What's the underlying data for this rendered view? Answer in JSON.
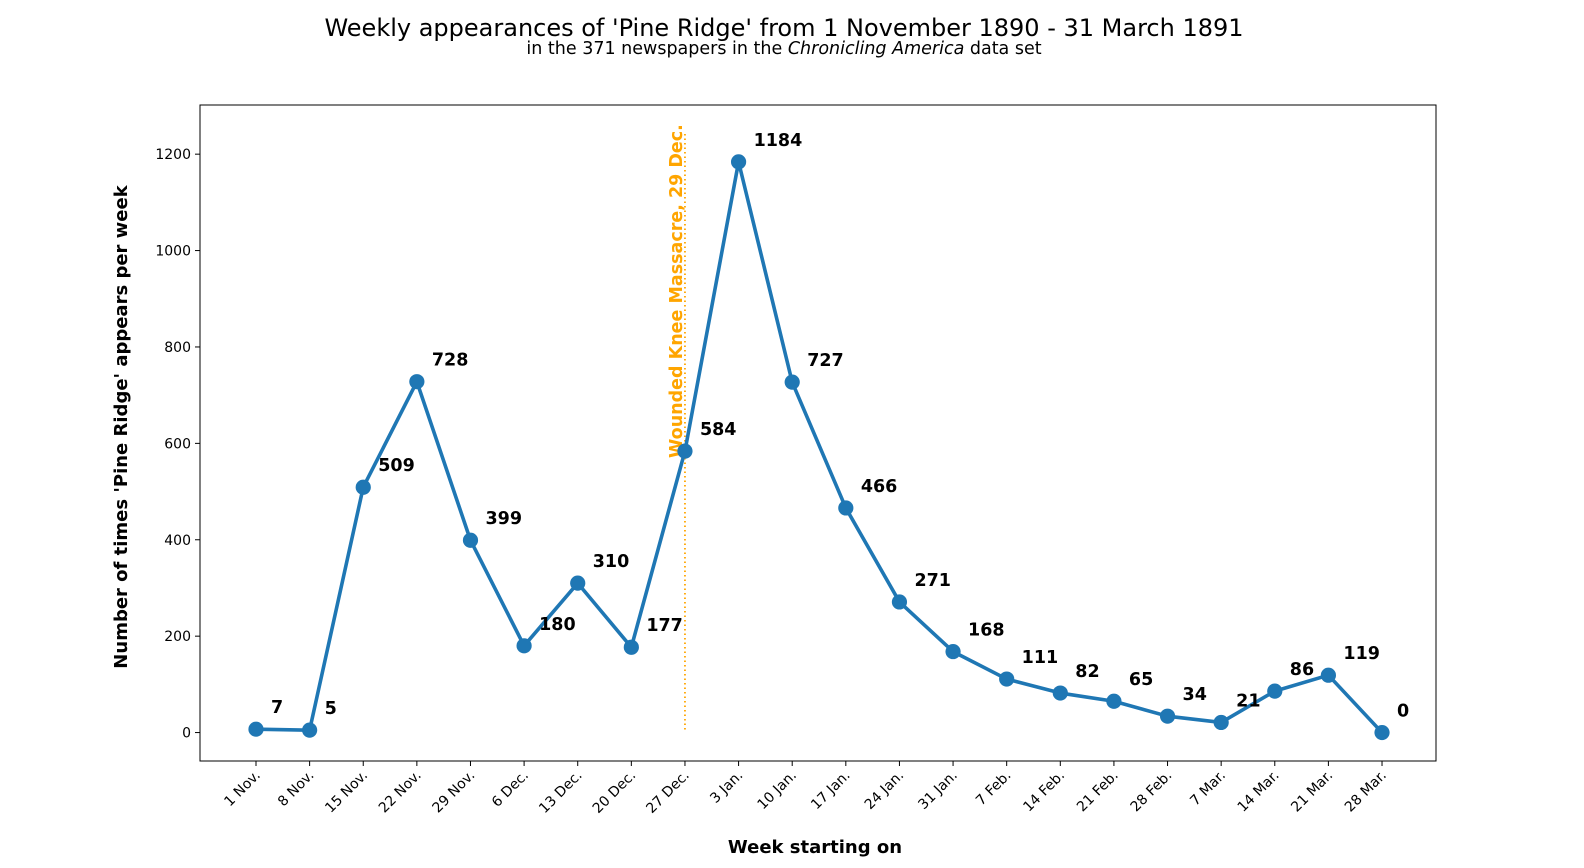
{
  "chart_data": {
    "type": "line",
    "title": "Weekly appearances of 'Pine Ridge' from 1 November 1890 - 31 March 1891",
    "subtitle": {
      "prefix": "in the 371 newspapers in the ",
      "emphasis": "Chronicling America",
      "suffix": " data set"
    },
    "xlabel": "Week starting on",
    "ylabel": "Number of times 'Pine Ridge' appears per week",
    "categories": [
      "1 Nov.",
      "8 Nov.",
      "15 Nov.",
      "22 Nov.",
      "29 Nov.",
      "6 Dec.",
      "13 Dec.",
      "20 Dec.",
      "27 Dec.",
      "3 Jan.",
      "10 Jan.",
      "17 Jan.",
      "24 Jan.",
      "31 Jan.",
      "7 Feb.",
      "14 Feb.",
      "21 Feb.",
      "28 Feb.",
      "7 Mar.",
      "14 Mar.",
      "21 Mar.",
      "28 Mar."
    ],
    "series": [
      {
        "values": [
          7,
          5,
          509,
          728,
          399,
          180,
          310,
          177,
          584,
          1184,
          727,
          466,
          271,
          168,
          111,
          82,
          65,
          34,
          21,
          86,
          119,
          0
        ],
        "color": "#1f77b4"
      }
    ],
    "ylim": [
      -59,
      1302
    ],
    "yticks": [
      0,
      200,
      400,
      600,
      800,
      1000,
      1200
    ],
    "grid": false,
    "legend": "none",
    "annotations": [
      {
        "text": "Wounded Knee Massacre, 29 Dec.",
        "x_category": "27 Dec.",
        "style": "dotted vertical line",
        "color": "#ffa500"
      }
    ]
  }
}
